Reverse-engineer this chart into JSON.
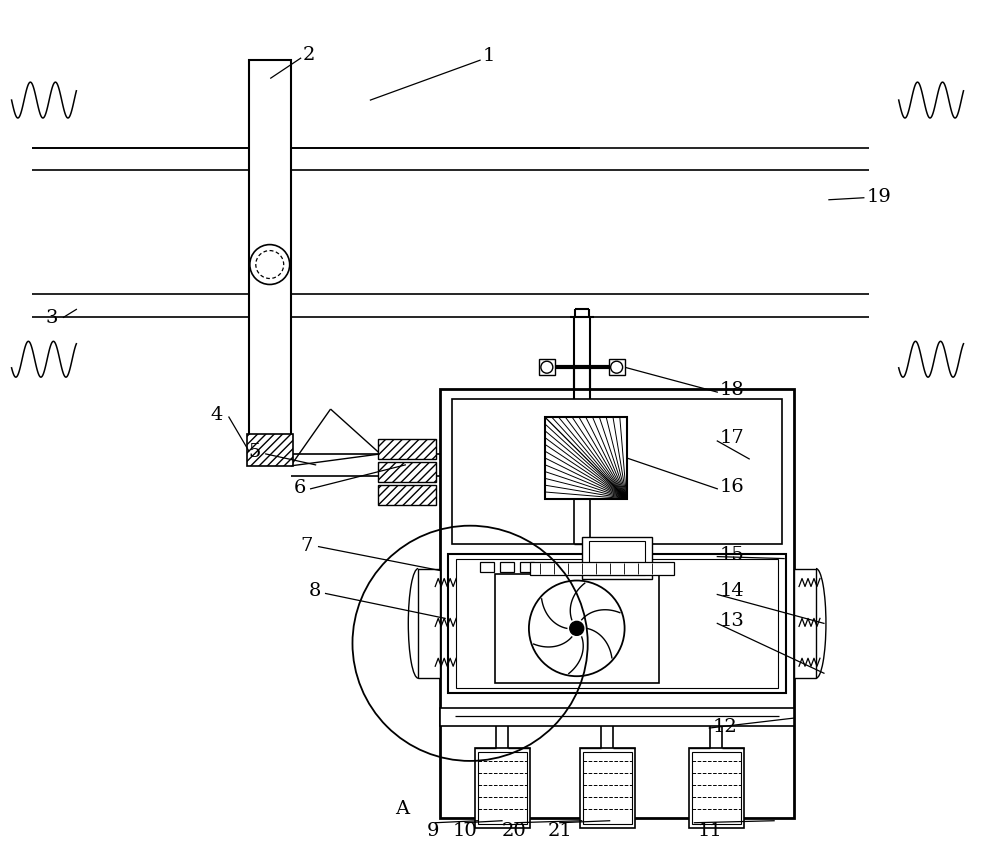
{
  "bg_color": "#ffffff",
  "fig_width": 10.0,
  "fig_height": 8.62
}
